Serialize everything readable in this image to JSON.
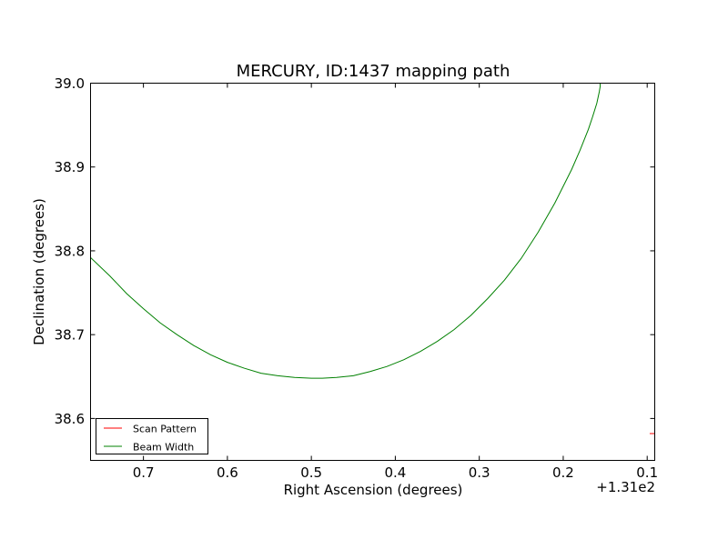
{
  "chart_data": {
    "type": "line",
    "title": "MERCURY, ID:1437 mapping path",
    "xlabel": "Right Ascension (degrees)",
    "ylabel": "Declination (degrees)",
    "x_offset_label": "+1.31e2",
    "x_inverted": true,
    "xlim": [
      131.763,
      131.091
    ],
    "ylim": [
      38.55,
      39.0
    ],
    "grid": false,
    "legend_position": "lower-left",
    "x_ticks": [
      {
        "value": 131.7,
        "label": "0.7"
      },
      {
        "value": 131.6,
        "label": "0.6"
      },
      {
        "value": 131.5,
        "label": "0.5"
      },
      {
        "value": 131.4,
        "label": "0.4"
      },
      {
        "value": 131.3,
        "label": "0.3"
      },
      {
        "value": 131.2,
        "label": "0.2"
      },
      {
        "value": 131.1,
        "label": "0.1"
      }
    ],
    "y_ticks": [
      {
        "value": 38.6,
        "label": "38.6"
      },
      {
        "value": 38.7,
        "label": "38.7"
      },
      {
        "value": 38.8,
        "label": "38.8"
      },
      {
        "value": 38.9,
        "label": "38.9"
      },
      {
        "value": 39.0,
        "label": "39.0"
      }
    ],
    "series": [
      {
        "name": "Scan Pattern",
        "color": "#ff0000",
        "x": [
          131.097,
          131.091
        ],
        "y": [
          38.582,
          38.582
        ]
      },
      {
        "name": "Beam Width",
        "color": "#008000",
        "x": [
          131.763,
          131.74,
          131.72,
          131.7,
          131.68,
          131.66,
          131.64,
          131.62,
          131.6,
          131.58,
          131.56,
          131.54,
          131.52,
          131.5,
          131.487,
          131.47,
          131.45,
          131.43,
          131.41,
          131.39,
          131.37,
          131.35,
          131.33,
          131.31,
          131.29,
          131.27,
          131.25,
          131.23,
          131.21,
          131.19,
          131.18,
          131.17,
          131.165,
          131.16,
          131.157,
          131.156,
          131.156
        ],
        "y": [
          38.792,
          38.77,
          38.749,
          38.731,
          38.714,
          38.7,
          38.687,
          38.676,
          38.667,
          38.66,
          38.654,
          38.651,
          38.649,
          38.648,
          38.648,
          38.649,
          38.651,
          38.656,
          38.662,
          38.67,
          38.68,
          38.692,
          38.706,
          38.723,
          38.743,
          38.765,
          38.791,
          38.822,
          38.857,
          38.897,
          38.92,
          38.945,
          38.96,
          38.976,
          38.99,
          38.996,
          39.0
        ]
      }
    ]
  }
}
